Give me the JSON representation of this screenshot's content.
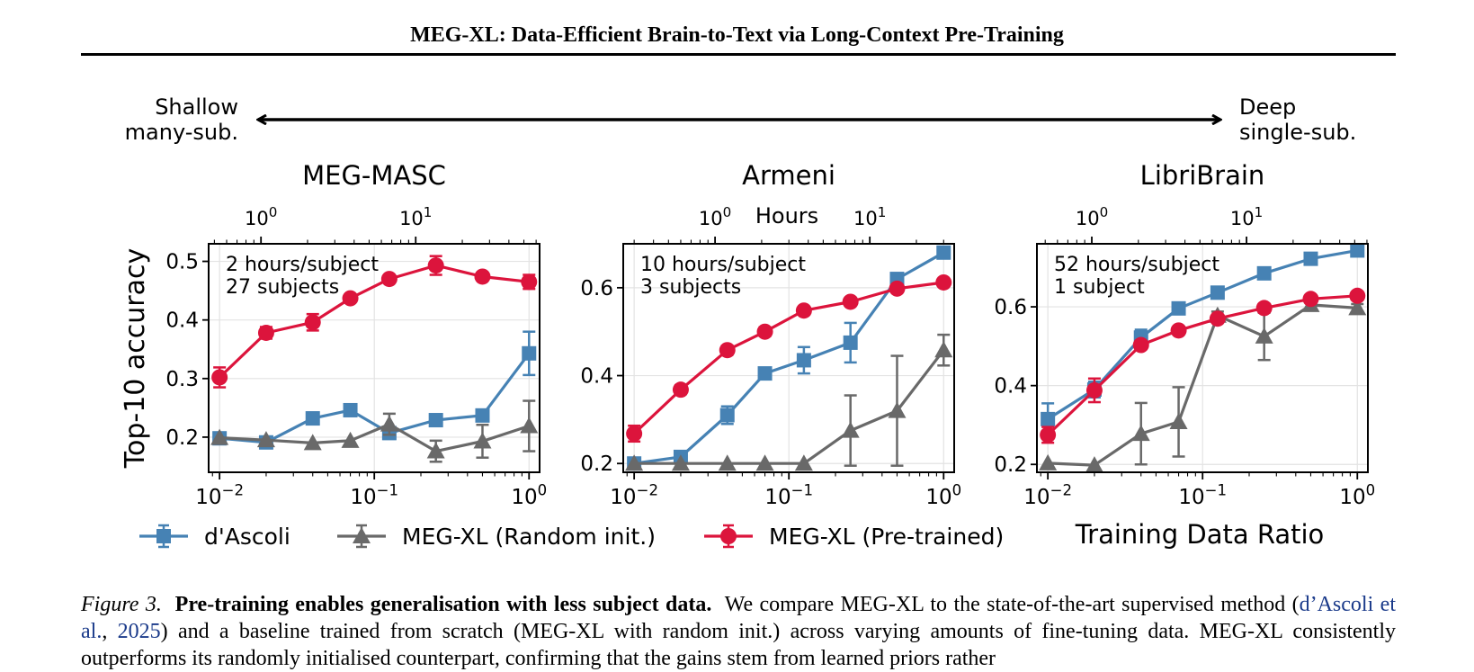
{
  "header": {
    "title": "MEG-XL: Data-Efficient Brain-to-Text via Long-Context Pre-Training"
  },
  "figure": {
    "arrow_left_line1": "Shallow",
    "arrow_left_line2": "many-sub.",
    "arrow_right_line1": "Deep",
    "arrow_right_line2": "single-sub.",
    "top_axis_label": "Hours",
    "y_axis_label": "Top-10 accuracy",
    "x_axis_label": "Training Data Ratio",
    "legend": [
      {
        "name": "d'Ascoli",
        "color": "#4682b4",
        "marker": "square"
      },
      {
        "name": "MEG-XL (Random init.)",
        "color": "#696969",
        "marker": "triangle"
      },
      {
        "name": "MEG-XL (Pre-trained)",
        "color": "#dc143c",
        "marker": "circle"
      }
    ]
  },
  "chart_data": [
    {
      "type": "line",
      "title": "MEG-MASC",
      "annotation_line1": "2 hours/subject",
      "annotation_line2": "27 subjects",
      "x": [
        0.01,
        0.02,
        0.04,
        0.07,
        0.125,
        0.25,
        0.5,
        1.0
      ],
      "xscale": "log",
      "xlim": [
        0.0085,
        1.17
      ],
      "ylim": [
        0.14,
        0.53
      ],
      "yticks": [
        0.2,
        0.3,
        0.4,
        0.5
      ],
      "ytick_labels": [
        "0.2",
        "0.3",
        "0.4",
        "0.5"
      ],
      "hours_axis": {
        "hours_at_ratio_1": 54,
        "ticks": [
          1,
          10
        ],
        "tick_labels": [
          "10^0",
          "10^1"
        ]
      },
      "series": [
        {
          "name": "d'Ascoli",
          "values": [
            0.198,
            0.191,
            0.232,
            0.246,
            0.207,
            0.229,
            0.237,
            0.343
          ],
          "err": [
            0.01,
            0.01,
            0.01,
            0.01,
            0.01,
            0.01,
            0.01,
            0.037
          ]
        },
        {
          "name": "MEG-XL (Random init.)",
          "values": [
            0.199,
            0.195,
            0.19,
            0.194,
            0.222,
            0.176,
            0.193,
            0.219
          ],
          "err": [
            0.005,
            0.005,
            0.005,
            0.005,
            0.018,
            0.018,
            0.028,
            0.043
          ]
        },
        {
          "name": "MEG-XL (Pre-trained)",
          "values": [
            0.302,
            0.378,
            0.396,
            0.437,
            0.47,
            0.493,
            0.474,
            0.465
          ],
          "err": [
            0.017,
            0.01,
            0.014,
            0.005,
            0.005,
            0.016,
            0.005,
            0.012
          ]
        }
      ]
    },
    {
      "type": "line",
      "title": "Armeni",
      "annotation_line1": "10 hours/subject",
      "annotation_line2": "3 subjects",
      "x": [
        0.01,
        0.02,
        0.04,
        0.07,
        0.125,
        0.25,
        0.5,
        1.0
      ],
      "xscale": "log",
      "xlim": [
        0.0085,
        1.17
      ],
      "ylim": [
        0.18,
        0.7
      ],
      "yticks": [
        0.2,
        0.4,
        0.6
      ],
      "ytick_labels": [
        "0.2",
        "0.4",
        "0.6"
      ],
      "hours_axis": {
        "hours_at_ratio_1": 30,
        "ticks": [
          1,
          10
        ],
        "tick_labels": [
          "10^0",
          "10^1"
        ]
      },
      "series": [
        {
          "name": "d'Ascoli",
          "values": [
            0.2,
            0.215,
            0.31,
            0.405,
            0.435,
            0.475,
            0.62,
            0.68
          ],
          "err": [
            0.005,
            0.005,
            0.02,
            0.01,
            0.03,
            0.045,
            0.01,
            0.005
          ]
        },
        {
          "name": "MEG-XL (Random init.)",
          "values": [
            0.2,
            0.2,
            0.2,
            0.2,
            0.2,
            0.275,
            0.32,
            0.458
          ],
          "err": [
            0.005,
            0.005,
            0.005,
            0.005,
            0.005,
            0.08,
            0.125,
            0.035
          ]
        },
        {
          "name": "MEG-XL (Pre-trained)",
          "values": [
            0.268,
            0.368,
            0.458,
            0.5,
            0.548,
            0.568,
            0.598,
            0.612
          ],
          "err": [
            0.018,
            0.01,
            0.01,
            0.01,
            0.005,
            0.005,
            0.005,
            0.005
          ]
        }
      ]
    },
    {
      "type": "line",
      "title": "LibriBrain",
      "annotation_line1": "52 hours/subject",
      "annotation_line2": "1 subject",
      "x": [
        0.01,
        0.02,
        0.04,
        0.07,
        0.125,
        0.25,
        0.5,
        1.0
      ],
      "xscale": "log",
      "xlim": [
        0.0085,
        1.17
      ],
      "ylim": [
        0.18,
        0.76
      ],
      "yticks": [
        0.2,
        0.4,
        0.6
      ],
      "ytick_labels": [
        "0.2",
        "0.4",
        "0.6"
      ],
      "hours_axis": {
        "hours_at_ratio_1": 52,
        "ticks": [
          1,
          10
        ],
        "tick_labels": [
          "10^0",
          "10^1"
        ]
      },
      "series": [
        {
          "name": "d'Ascoli",
          "values": [
            0.315,
            0.39,
            0.522,
            0.596,
            0.636,
            0.685,
            0.722,
            0.743
          ],
          "err": [
            0.04,
            0.02,
            0.02,
            0.01,
            0.01,
            0.01,
            0.01,
            0.01
          ]
        },
        {
          "name": "MEG-XL (Random init.)",
          "values": [
            0.203,
            0.198,
            0.278,
            0.308,
            0.578,
            0.525,
            0.605,
            0.597
          ],
          "err": [
            0.005,
            0.005,
            0.078,
            0.088,
            0.01,
            0.06,
            0.01,
            0.01
          ]
        },
        {
          "name": "MEG-XL (Pre-trained)",
          "values": [
            0.275,
            0.388,
            0.503,
            0.54,
            0.57,
            0.597,
            0.62,
            0.628
          ],
          "err": [
            0.02,
            0.03,
            0.01,
            0.01,
            0.01,
            0.01,
            0.01,
            0.01
          ]
        }
      ]
    }
  ],
  "caption": {
    "label": "Figure 3.",
    "bold": "Pre-training enables generalisation with less subject data.",
    "text1": "We compare MEG-XL to the state-of-the-art supervised method (",
    "cite_author": "d’Ascoli et al.",
    "cite_sep": ", ",
    "cite_year": "2025",
    "text2": ") and a baseline trained from scratch (MEG-XL with random init.) across varying amounts of fine-tuning data. MEG-XL consistently outperforms its randomly initialised counterpart, confirming that the gains stem from learned priors rather"
  }
}
